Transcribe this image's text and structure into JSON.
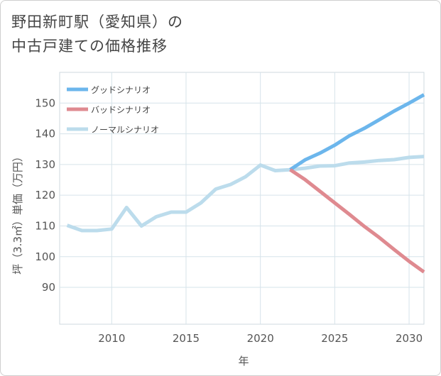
{
  "chart_data": {
    "type": "line",
    "title_line1": "野田新町駅（愛知県）の",
    "title_line2": "中古戸建ての価格推移",
    "xlabel": "年",
    "ylabel": "坪（3.3㎡）単価（万円）",
    "xlim": [
      2006.5,
      2031
    ],
    "ylim": [
      78,
      160
    ],
    "xticks": [
      2010,
      2015,
      2020,
      2025,
      2030
    ],
    "yticks": [
      90,
      100,
      110,
      120,
      130,
      140,
      150
    ],
    "legend_position": "top-left",
    "series": [
      {
        "name": "グッドシナリオ",
        "color": "#6cb6ec",
        "x": [
          2022,
          2023,
          2024,
          2025,
          2026,
          2027,
          2028,
          2029,
          2030,
          2031
        ],
        "values": [
          128.3,
          131.5,
          133.7,
          136.3,
          139.4,
          141.8,
          144.6,
          147.4,
          150.0,
          152.7
        ]
      },
      {
        "name": "バッドシナリオ",
        "color": "#df8a90",
        "x": [
          2022,
          2023,
          2024,
          2025,
          2026,
          2027,
          2028,
          2029,
          2030,
          2031
        ],
        "values": [
          128.3,
          125.1,
          121.3,
          117.5,
          113.7,
          109.8,
          106.2,
          102.3,
          98.5,
          95.0
        ]
      },
      {
        "name": "ノーマルシナリオ",
        "color": "#bcdcec",
        "x": [
          2007,
          2008,
          2009,
          2010,
          2011,
          2012,
          2013,
          2014,
          2015,
          2016,
          2017,
          2018,
          2019,
          2020,
          2021,
          2022,
          2023,
          2024,
          2025,
          2026,
          2027,
          2028,
          2029,
          2030,
          2031
        ],
        "values": [
          110.2,
          108.5,
          108.5,
          109.0,
          116.0,
          110.0,
          113.0,
          114.5,
          114.5,
          117.5,
          122.0,
          123.5,
          126.0,
          129.8,
          128.0,
          128.3,
          128.8,
          129.5,
          129.6,
          130.5,
          130.8,
          131.3,
          131.6,
          132.3,
          132.6
        ]
      }
    ]
  }
}
